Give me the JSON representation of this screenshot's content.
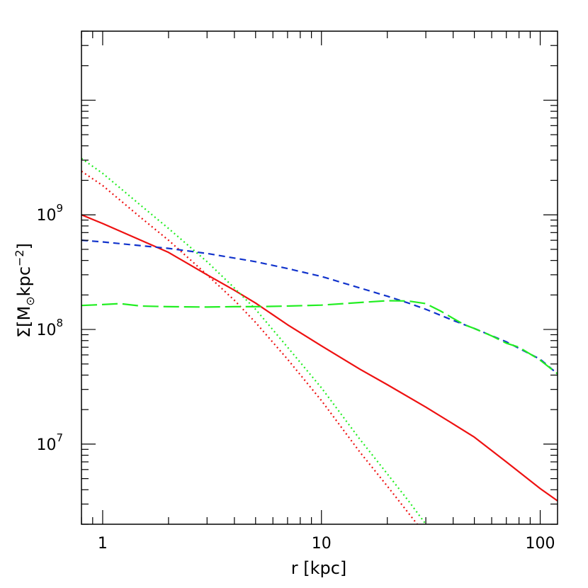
{
  "chart_data": {
    "type": "line",
    "xlabel": "r [kpc]",
    "ylabel_parts": {
      "sym": "Σ",
      "open": "[",
      "m": "M",
      "sun": "⊙",
      "unit": "kpc",
      "exp": "−2",
      "close": "]"
    },
    "x_scale": "log",
    "y_scale": "log",
    "xlim": [
      0.8,
      120
    ],
    "ylim": [
      2000000,
      40000000000
    ],
    "x_ticks": [
      {
        "value": 1,
        "label": "1"
      },
      {
        "value": 10,
        "label": "10"
      },
      {
        "value": 100,
        "label": "100"
      }
    ],
    "y_ticks": [
      {
        "value": 10000000,
        "base": "10",
        "exp": "7"
      },
      {
        "value": 100000000,
        "base": "10",
        "exp": "8"
      },
      {
        "value": 1000000000,
        "base": "10",
        "exp": "9"
      }
    ],
    "series": [
      {
        "color": "#ee1111",
        "dash": "solid",
        "x": [
          0.8,
          1,
          2,
          3,
          4,
          5,
          7,
          10,
          15,
          20,
          30,
          40,
          50,
          70,
          100,
          120
        ],
        "y": [
          1000000000,
          840000000,
          470000000,
          300000000,
          220000000,
          170000000,
          110000000,
          72000000,
          45000000,
          33000000,
          21000000,
          15000000,
          11500000,
          7000000,
          4100000,
          3200000
        ]
      },
      {
        "color": "#ee1111",
        "dash": "dotted",
        "x": [
          0.8,
          1,
          1.5,
          2,
          3,
          4,
          5,
          7,
          10,
          15,
          20,
          25,
          28
        ],
        "y": [
          2400000000,
          1800000000,
          940000000,
          600000000,
          300000000,
          180000000,
          115000000,
          55000000,
          24000000,
          8500000,
          4300000,
          2500000,
          1900000
        ]
      },
      {
        "color": "#22ee22",
        "dash": "dotted",
        "x": [
          0.8,
          1,
          1.5,
          2,
          3,
          4,
          5,
          7,
          10,
          15,
          20,
          25,
          30
        ],
        "y": [
          3100000000,
          2300000000,
          1200000000,
          760000000,
          390000000,
          230000000,
          150000000,
          70000000,
          31000000,
          11000000,
          5500000,
          3200000,
          2000000
        ]
      },
      {
        "color": "#1133cc",
        "dash": "dashed",
        "x": [
          0.8,
          1,
          2,
          3,
          5,
          7,
          10,
          15,
          20,
          25,
          30,
          40,
          50,
          70,
          100,
          120
        ],
        "y": [
          600000000,
          580000000,
          510000000,
          460000000,
          390000000,
          340000000,
          290000000,
          230000000,
          195000000,
          170000000,
          150000000,
          120000000,
          102000000,
          78000000,
          55000000,
          41000000
        ]
      },
      {
        "color": "#22ee22",
        "dash": "longdash",
        "x": [
          0.8,
          1,
          1.2,
          1.5,
          2,
          3,
          4,
          5,
          7,
          10,
          15,
          20,
          25,
          30,
          35,
          40,
          45,
          50,
          60,
          70,
          80,
          100,
          120
        ],
        "y": [
          162000000,
          165000000,
          168000000,
          160000000,
          158000000,
          157000000,
          158000000,
          158000000,
          160000000,
          163000000,
          172000000,
          178000000,
          177000000,
          168000000,
          145000000,
          125000000,
          110000000,
          102000000,
          88000000,
          76000000,
          70000000,
          54000000,
          41000000
        ]
      }
    ]
  }
}
